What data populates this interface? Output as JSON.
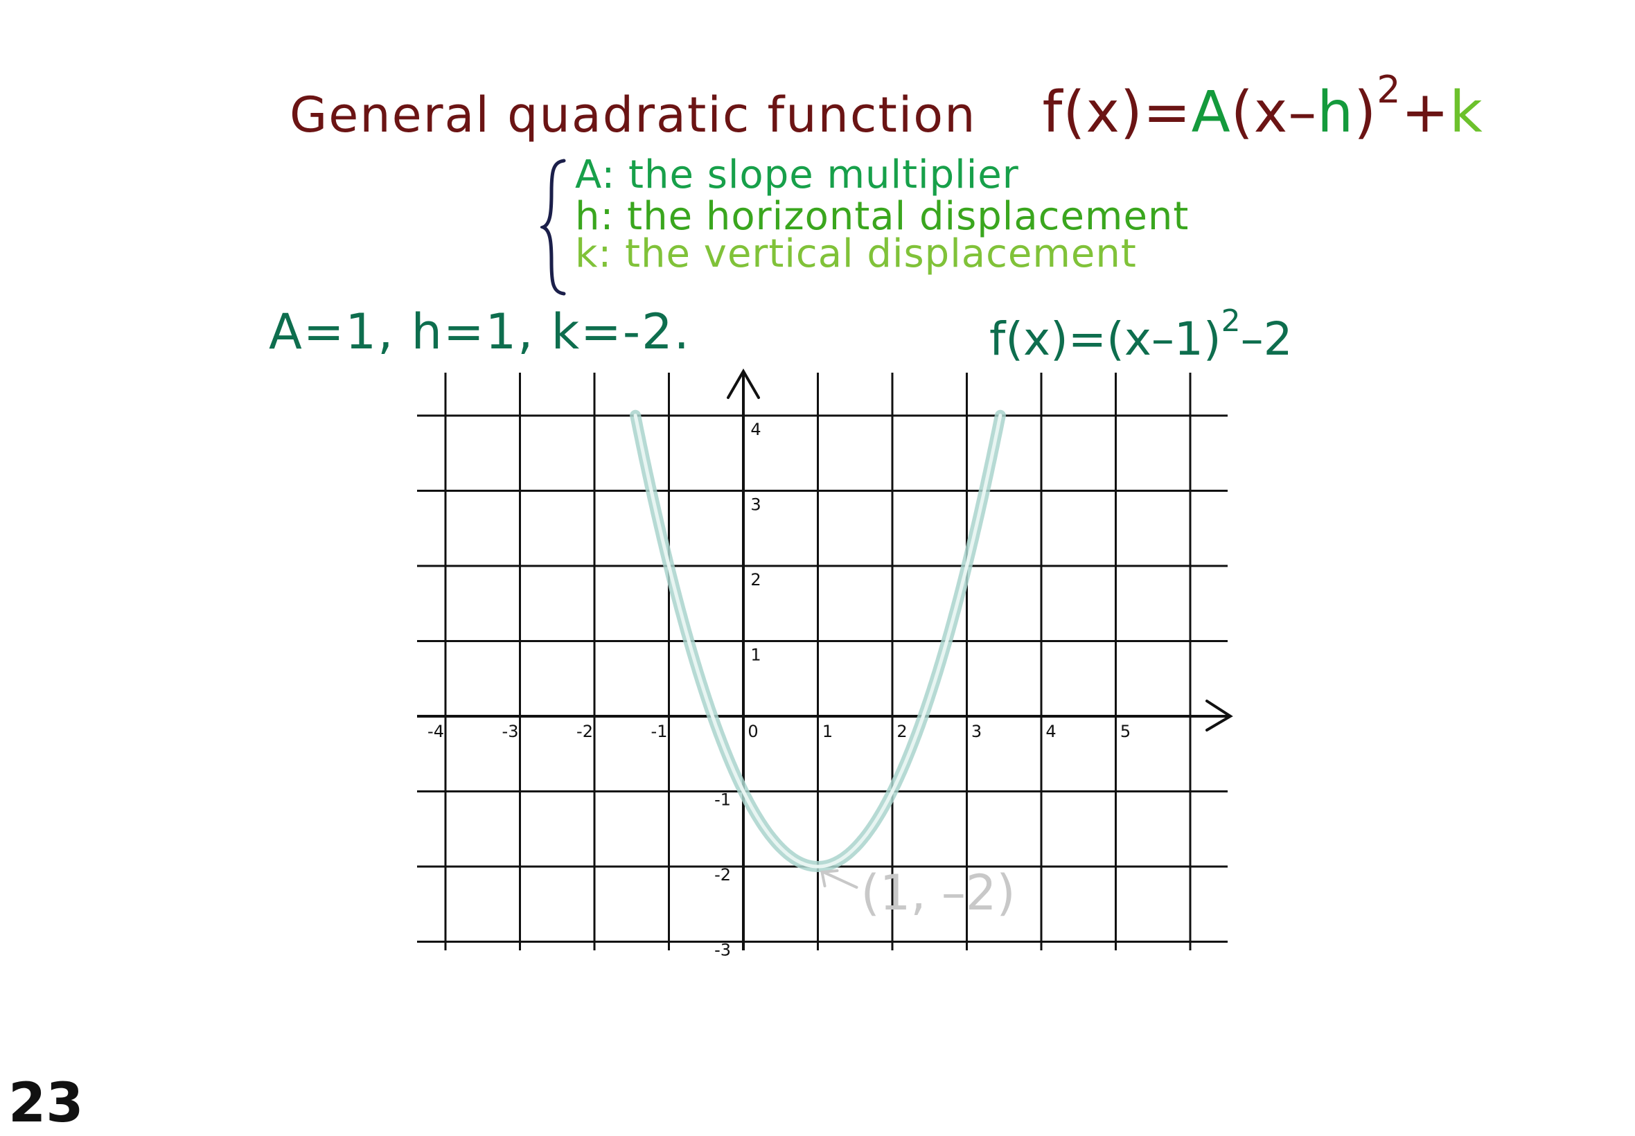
{
  "title": "General quadratic function",
  "formula": {
    "f": "f(x)=",
    "A": "A",
    "paren_open": "(x–",
    "h": "h",
    "paren_close": ")",
    "exp": "2",
    "plus": "+",
    "k": "k"
  },
  "definitions": [
    {
      "text": "A: the slope multiplier"
    },
    {
      "text": "h: the horizontal displacement"
    },
    {
      "text": "k: the vertical displacement"
    }
  ],
  "params": "A=1, h=1, k=-2.",
  "equation": {
    "base": "f(x)=(x–1)",
    "exp": "2",
    "tail": "–2"
  },
  "colors": {
    "title": "#6b1414",
    "A": "#149a3c",
    "k": "#6cc12c",
    "curve": "#a9d3cc",
    "curve_core": "#e8f5f2",
    "grid": "#111111",
    "vertex_label": "#c8c8c8"
  },
  "chart_data": {
    "type": "line",
    "title": "",
    "xlabel": "",
    "ylabel": "",
    "xlim": [
      -4,
      6
    ],
    "ylim": [
      -3,
      4.5
    ],
    "grid": true,
    "x_ticks": [
      "-4",
      "-3",
      "-2",
      "-1",
      "0",
      "1",
      "2",
      "3",
      "4",
      "5"
    ],
    "y_ticks": [
      "4",
      "3",
      "2",
      "1",
      "-1",
      "-2",
      "-3"
    ],
    "series": [
      {
        "function": "(x-1)^2-2",
        "x": [
          -1.4,
          -1,
          -0.5,
          0,
          0.5,
          1,
          1.5,
          2,
          2.5,
          3,
          3.4
        ],
        "y": [
          3.76,
          2,
          0.25,
          -1,
          -1.75,
          -2,
          -1.75,
          -1,
          0.25,
          2,
          3.76
        ]
      }
    ],
    "annotations": [
      {
        "text": "(1, –2)",
        "x": 1,
        "y": -2
      }
    ]
  },
  "page_number": "23"
}
